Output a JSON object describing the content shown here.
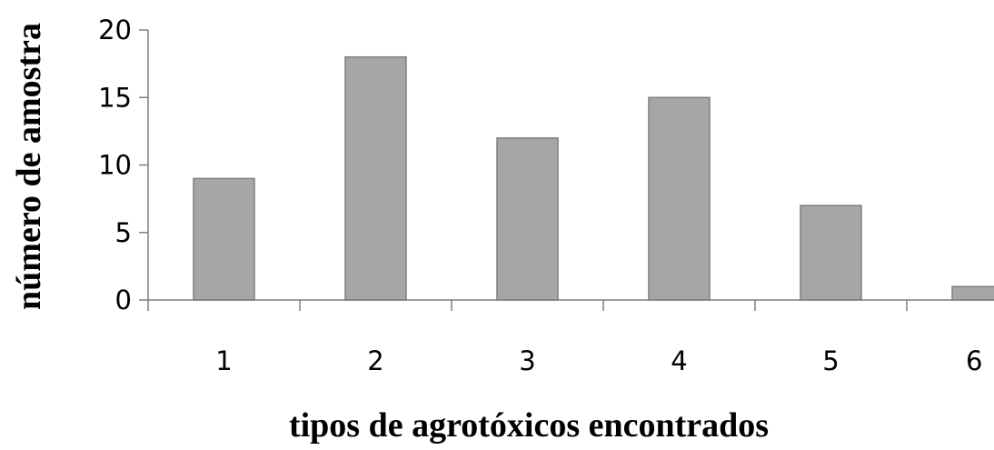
{
  "chart_data": {
    "type": "bar",
    "categories": [
      "1",
      "2",
      "3",
      "4",
      "5",
      "6"
    ],
    "values": [
      9,
      18,
      12,
      15,
      7,
      1
    ],
    "title": "",
    "xlabel": "tipos de agrotóxicos encontrados",
    "ylabel": "número de amostra",
    "ylim": [
      0,
      20
    ],
    "yticks": [
      0,
      5,
      10,
      15,
      20
    ],
    "grid": false,
    "legend": "none",
    "bar_color": "#a6a6a6",
    "bar_edge_color": "#7f7f7f",
    "axis_color": "#7f7f7f"
  }
}
